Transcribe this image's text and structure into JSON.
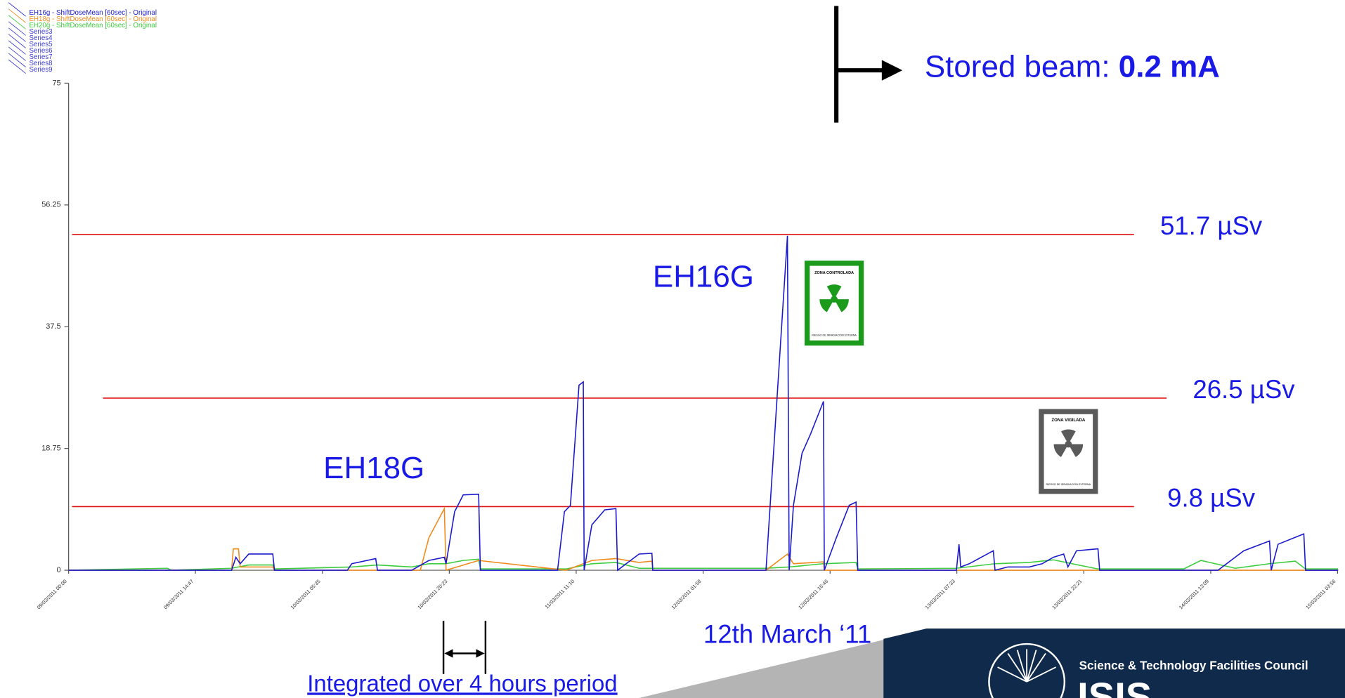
{
  "chart_data": {
    "type": "line",
    "xlim": [
      0,
      148
    ],
    "xticks": [
      {
        "value": 0,
        "label": "09/03/2011 00:00"
      },
      {
        "value": 14.78,
        "label": "09/03/2011 14:47"
      },
      {
        "value": 29.58,
        "label": "10/03/2011 05:35"
      },
      {
        "value": 44.38,
        "label": "10/03/2011 20:23"
      },
      {
        "value": 59.17,
        "label": "11/03/2011 11:10"
      },
      {
        "value": 73.97,
        "label": "12/03/2011 01:58"
      },
      {
        "value": 88.77,
        "label": "12/03/2011 16:46"
      },
      {
        "value": 103.55,
        "label": "13/03/2011 07:33"
      },
      {
        "value": 118.35,
        "label": "13/03/2011 22:21"
      },
      {
        "value": 133.15,
        "label": "14/03/2011 13:09"
      },
      {
        "value": 147.93,
        "label": "15/03/2011 03:56"
      }
    ],
    "ylim": [
      0,
      75
    ],
    "yticks": [
      0,
      18.75,
      37.5,
      56.25,
      75
    ],
    "series": [
      {
        "name": "EH16g - ShiftDoseMean [60sec] - Original",
        "color": "#1a1acc",
        "x": [
          0,
          19,
          19.5,
          20,
          21,
          23.8,
          24,
          32.5,
          33,
          35.8,
          36,
          40,
          42,
          43.8,
          44,
          45,
          46,
          47.8,
          48,
          57,
          57.8,
          58.5,
          59.5,
          60,
          60.1,
          61,
          62.5,
          63.8,
          64,
          66.5,
          68,
          68.1,
          81.3,
          83.8,
          84,
          84.5,
          85.5,
          86.5,
          88,
          88.1,
          89.5,
          91,
          91.8,
          92,
          103.5,
          103.8,
          104,
          105,
          107.8,
          108,
          109.5,
          112,
          113.5,
          114.8,
          116,
          116.5,
          117.5,
          120,
          120.2,
          134,
          135,
          137,
          140,
          140.2,
          141,
          144,
          144.2,
          148
        ],
        "values": [
          0,
          0,
          2,
          1,
          2.5,
          2.5,
          0,
          0,
          1,
          1.8,
          0,
          0,
          1.5,
          2,
          1,
          9,
          11.6,
          11.7,
          0,
          0,
          9,
          10,
          28.5,
          29,
          0,
          7,
          9.3,
          9.5,
          0,
          2.5,
          2.6,
          0,
          0,
          51.5,
          0,
          10,
          18,
          21,
          26,
          0,
          5,
          10,
          10.5,
          0,
          0,
          4,
          0.5,
          1,
          3,
          0,
          0.5,
          0.5,
          1,
          2,
          2.5,
          0.5,
          3,
          3.3,
          0,
          0,
          1,
          3,
          4.5,
          0,
          4,
          5.6,
          0,
          0
        ]
      },
      {
        "name": "EH18g - ShiftDoseMean [60sec] - Original",
        "color": "#f08a1c",
        "x": [
          0,
          19,
          19.2,
          19.8,
          20,
          23.8,
          24,
          41,
          42,
          43.8,
          44,
          47.8,
          58,
          61,
          63.8,
          66.5,
          68,
          68.1,
          81.3,
          83.8,
          84.5,
          88,
          88.1,
          148
        ],
        "values": [
          0,
          0,
          3.3,
          3.3,
          0.5,
          0.5,
          0,
          0,
          5,
          9.5,
          0,
          1.5,
          0,
          1.5,
          1.8,
          1.2,
          1.4,
          0,
          0,
          2.5,
          1,
          1.3,
          0,
          0
        ]
      },
      {
        "name": "EH20g - ShiftDoseMean [60sec] - Original",
        "color": "#3ccc3c",
        "x": [
          0,
          11.5,
          12,
          19,
          21,
          23.8,
          24,
          33,
          36,
          40,
          42,
          44,
          46,
          47.8,
          48,
          58,
          61,
          63.8,
          66.5,
          68,
          81.3,
          84,
          88,
          91.8,
          92,
          103.5,
          108,
          112,
          114.8,
          120,
          130,
          132,
          136,
          140,
          143,
          144.2,
          148
        ],
        "values": [
          0,
          0.3,
          0,
          0.3,
          0.8,
          0.8,
          0.2,
          0.5,
          0.8,
          0.5,
          1,
          1,
          1.5,
          1.7,
          0.2,
          0.2,
          1,
          1.2,
          0.3,
          0.3,
          0.3,
          0.5,
          1,
          1.2,
          0.2,
          0.3,
          1,
          1.2,
          1.6,
          0.2,
          0.2,
          1.5,
          0.3,
          1,
          1.4,
          0.2,
          0.2
        ]
      },
      {
        "name": "Series3",
        "color": "#3a3acc",
        "x": [],
        "values": []
      },
      {
        "name": "Series4",
        "color": "#3a3acc",
        "x": [],
        "values": []
      },
      {
        "name": "Series5",
        "color": "#3a3acc",
        "x": [],
        "values": []
      },
      {
        "name": "Series6",
        "color": "#3a3acc",
        "x": [],
        "values": []
      },
      {
        "name": "Series7",
        "color": "#3a3acc",
        "x": [],
        "values": []
      },
      {
        "name": "Series8",
        "color": "#3a3acc",
        "x": [],
        "values": []
      },
      {
        "name": "Series9",
        "color": "#3a3acc",
        "x": [],
        "values": []
      }
    ],
    "reference_lines": [
      {
        "value": 51.7,
        "label": "51.7 µSv",
        "color": "#e01010"
      },
      {
        "value": 26.5,
        "label": "26.5 µSv",
        "color": "#e01010"
      },
      {
        "value": 9.8,
        "label": "9.8 µSv",
        "color": "#e01010"
      }
    ],
    "annotations": [
      "EH16G",
      "EH18G"
    ]
  },
  "slide": {
    "beam_label": "Stored beam: ",
    "beam_value": "0.2 mA",
    "date_note": "12th March ‘11",
    "period_note": "Integrated over 4 hours period",
    "sign_controlled": {
      "title": "ZONA CONTROLADA",
      "footer": "RIESGO DE IRRADIACIÓN EXTERNA"
    },
    "sign_supervised": {
      "title": "ZONA VIGILADA",
      "footer": "RIESGO DE IRRADIACIÓN EXTERNA"
    },
    "logo": {
      "council": "Science & Technology Facilities Council",
      "name": "ISIS"
    }
  }
}
